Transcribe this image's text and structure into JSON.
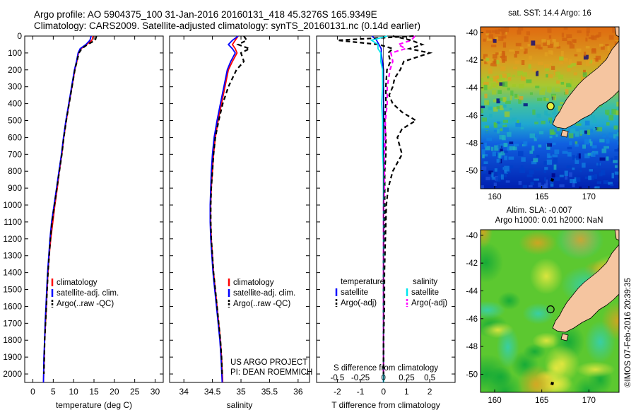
{
  "header": {
    "line1": "Argo profile: AO 5904375_100 31-Jan-2016 20160131_418 45.3276S 165.9349E",
    "line2": "Climatology: CARS2009. Satellite-adjusted climatology: synTS_20160131.nc (0.14d earlier)"
  },
  "colors": {
    "climatology": "#ff0000",
    "satellite": "#0000ff",
    "argo": "#000000",
    "sal_satellite": "#00e5ee",
    "sal_argo": "#ff00ff",
    "land": "#f5c5a0"
  },
  "credit": {
    "project": "US ARGO PROJECT",
    "pi": "PI: DEAN ROEMMICH",
    "timestamp": "©IMOS 07-Feb-2016 20:39:35"
  },
  "chart_data": [
    {
      "type": "line",
      "xlabel": "temperature (deg C)",
      "xlim": [
        -2,
        32
      ],
      "ylim": [
        0,
        2050
      ],
      "y_reversed": true,
      "xticks": [
        0,
        5,
        10,
        15,
        20,
        25,
        30
      ],
      "yticks": [
        0,
        100,
        200,
        300,
        400,
        500,
        600,
        700,
        800,
        900,
        1000,
        1100,
        1200,
        1300,
        1400,
        1500,
        1600,
        1700,
        1800,
        1900,
        2000
      ],
      "legend": [
        "climatology",
        "satellite-adj. clim.",
        "Argo(..raw -QC)"
      ],
      "series": [
        {
          "name": "climatology",
          "color": "#ff0000",
          "style": "solid",
          "x": [
            14.8,
            14.5,
            13.2,
            11.8,
            11.2,
            10.8,
            10.3,
            9.6,
            8.9,
            8.2,
            7.6,
            7.1,
            6.5,
            6.0,
            5.4,
            4.9,
            4.4,
            4.0,
            3.7,
            3.5,
            3.3,
            3.1,
            2.9,
            2.8,
            2.6
          ],
          "y": [
            0,
            25,
            50,
            75,
            100,
            150,
            200,
            300,
            400,
            500,
            600,
            700,
            800,
            900,
            1000,
            1100,
            1200,
            1300,
            1400,
            1500,
            1600,
            1700,
            1800,
            1900,
            2050
          ]
        },
        {
          "name": "satellite-adj. clim.",
          "color": "#0000ff",
          "style": "solid",
          "x": [
            14.3,
            14.0,
            13.0,
            11.6,
            11.1,
            10.7,
            10.2,
            9.5,
            8.8,
            8.1,
            7.5,
            7.0,
            6.4,
            5.8,
            5.2,
            4.6,
            4.2,
            3.9,
            3.6,
            3.4,
            3.2,
            3.0,
            2.9,
            2.7,
            2.6
          ],
          "y": [
            0,
            25,
            50,
            75,
            100,
            150,
            200,
            300,
            400,
            500,
            600,
            700,
            800,
            900,
            1000,
            1100,
            1200,
            1300,
            1400,
            1500,
            1600,
            1700,
            1800,
            1900,
            2050
          ]
        },
        {
          "name": "Argo(..raw -QC)",
          "color": "#000000",
          "style": "dashed",
          "x": [
            15.6,
            15.3,
            13.4,
            12.0,
            11.3,
            10.8,
            10.3,
            9.6,
            8.9,
            8.2,
            7.6,
            7.1,
            6.5,
            5.9,
            5.3,
            4.7,
            4.3,
            4.0,
            3.7,
            3.5,
            3.3,
            3.1,
            2.9,
            2.8,
            2.7
          ],
          "y": [
            0,
            25,
            50,
            75,
            100,
            150,
            200,
            300,
            400,
            500,
            600,
            700,
            800,
            900,
            1000,
            1100,
            1200,
            1300,
            1400,
            1500,
            1600,
            1700,
            1800,
            1900,
            2000
          ]
        }
      ]
    },
    {
      "type": "line",
      "xlabel": "salinity",
      "xlim": [
        33.75,
        36.2
      ],
      "ylim": [
        0,
        2050
      ],
      "y_reversed": true,
      "xticks": [
        34,
        34.5,
        35,
        35.5,
        36
      ],
      "legend": [
        "climatology",
        "satellite-adj. clim.",
        "Argo(..raw -QC)"
      ],
      "series": [
        {
          "name": "climatology",
          "color": "#ff0000",
          "style": "solid",
          "x": [
            34.95,
            34.9,
            34.85,
            34.9,
            34.93,
            34.85,
            34.78,
            34.72,
            34.66,
            34.6,
            34.55,
            34.52,
            34.5,
            34.48,
            34.47,
            34.47,
            34.48,
            34.5,
            34.52,
            34.55,
            34.58,
            34.61,
            34.64,
            34.66,
            34.68
          ],
          "y": [
            0,
            25,
            50,
            75,
            100,
            150,
            200,
            300,
            400,
            500,
            600,
            700,
            800,
            900,
            1000,
            1100,
            1200,
            1300,
            1400,
            1500,
            1600,
            1700,
            1800,
            1900,
            2050
          ]
        },
        {
          "name": "satellite-adj. clim.",
          "color": "#0000ff",
          "style": "solid",
          "x": [
            34.95,
            34.85,
            34.78,
            34.85,
            34.9,
            34.82,
            34.76,
            34.7,
            34.64,
            34.58,
            34.53,
            34.5,
            34.48,
            34.47,
            34.46,
            34.46,
            34.47,
            34.49,
            34.51,
            34.54,
            34.57,
            34.6,
            34.63,
            34.65,
            34.67
          ],
          "y": [
            0,
            25,
            50,
            75,
            100,
            150,
            200,
            300,
            400,
            500,
            600,
            700,
            800,
            900,
            1000,
            1100,
            1200,
            1300,
            1400,
            1500,
            1600,
            1700,
            1800,
            1900,
            2050
          ]
        },
        {
          "name": "Argo(..raw -QC)",
          "color": "#000000",
          "style": "dashed",
          "x": [
            35.05,
            35.1,
            34.95,
            35.15,
            35.0,
            35.05,
            34.92,
            34.78,
            34.68,
            34.61,
            34.55,
            34.52,
            34.5,
            34.48,
            34.47,
            34.47,
            34.48,
            34.5,
            34.52,
            34.55,
            34.58,
            34.61,
            34.64,
            34.66,
            34.67
          ],
          "y": [
            0,
            25,
            50,
            75,
            100,
            150,
            200,
            300,
            400,
            500,
            600,
            700,
            800,
            900,
            1000,
            1100,
            1200,
            1300,
            1400,
            1500,
            1600,
            1700,
            1800,
            1900,
            2000
          ]
        }
      ]
    },
    {
      "type": "line",
      "xlabel": "T difference from climatology",
      "xlabel2": "S difference from climatology",
      "xlim": [
        -2.9,
        3.1
      ],
      "ylim": [
        0,
        2050
      ],
      "y_reversed": true,
      "xticks": [
        -2,
        -1,
        0,
        1,
        2
      ],
      "xticks_s": [
        -0.5,
        -0.25,
        0,
        0.25,
        0.5
      ],
      "s_scale": 4,
      "legend_headers": [
        "temperature",
        "salinity"
      ],
      "legend": [
        "satellite",
        "Argo(-adj)",
        "satellite",
        "Argo(-adj)"
      ],
      "series": [
        {
          "name": "temperature satellite",
          "color": "#0000ff",
          "style": "solid",
          "x": [
            -0.5,
            -0.3,
            -0.2,
            -0.1,
            -0.1,
            -0.05,
            0,
            0,
            0,
            0,
            0,
            0,
            0,
            0,
            0,
            0,
            0,
            0,
            0,
            0,
            0,
            0,
            0,
            0
          ],
          "y": [
            0,
            25,
            50,
            75,
            100,
            150,
            200,
            300,
            400,
            500,
            600,
            700,
            800,
            900,
            1000,
            1100,
            1200,
            1300,
            1400,
            1500,
            1600,
            1700,
            1800,
            2050
          ]
        },
        {
          "name": "temperature Argo(-adj)",
          "color": "#000000",
          "style": "dashed",
          "x": [
            1.3,
            -2.0,
            -0.2,
            0.4,
            0.2,
            0.3,
            0.15,
            0.1,
            0.1,
            0.05,
            0.1,
            0.1,
            0.05,
            0.05,
            0.05,
            0.05,
            0.02,
            0,
            0,
            0,
            0,
            0,
            0,
            0
          ],
          "y": [
            0,
            25,
            50,
            75,
            100,
            150,
            200,
            300,
            400,
            500,
            600,
            700,
            800,
            900,
            1000,
            1100,
            1200,
            1300,
            1400,
            1500,
            1600,
            1700,
            1800,
            2000
          ]
        },
        {
          "name": "salinity satellite",
          "color": "#00e5ee",
          "style": "solid",
          "x": [
            0.04,
            -0.13,
            -0.06,
            -0.06,
            -0.03,
            -0.03,
            -0.01,
            -0.01,
            -0.02,
            -0.01,
            -0.01,
            -0.01,
            0,
            0,
            0,
            0,
            0,
            0,
            0,
            0,
            0,
            0,
            0,
            0
          ],
          "y": [
            0,
            25,
            50,
            75,
            100,
            150,
            200,
            300,
            400,
            500,
            600,
            700,
            800,
            900,
            1000,
            1100,
            1200,
            1300,
            1400,
            1500,
            1600,
            1700,
            1800,
            2050
          ]
        },
        {
          "name": "salinity Argo(-adj)",
          "color": "#ff00ff",
          "style": "dashed",
          "x": [
            0.34,
            0.3,
            0.16,
            0.24,
            0.08,
            0.1,
            0.07,
            0.04,
            0.04,
            0.02,
            0.02,
            0.01,
            0.01,
            0.01,
            0,
            0,
            0,
            0,
            0,
            0,
            0,
            0,
            0,
            0
          ],
          "y": [
            0,
            25,
            50,
            75,
            100,
            150,
            200,
            300,
            400,
            500,
            600,
            700,
            800,
            900,
            1000,
            1100,
            1200,
            1300,
            1400,
            1500,
            1600,
            1700,
            1800,
            2000
          ]
        },
        {
          "name": "salinity Argo raw",
          "color": "#000000",
          "style": "dashed",
          "x": [
            0.1,
            0.3,
            0.42,
            0.28,
            0.5,
            0.22,
            0.18,
            0.12,
            0.1,
            0.06,
            0.1,
            0.2,
            0.35,
            0.2,
            0.15,
            0.2,
            0.1,
            0.05,
            0.03,
            0.02,
            0.01,
            0.01,
            0,
            0
          ],
          "y": [
            0,
            25,
            50,
            75,
            100,
            150,
            200,
            250,
            300,
            350,
            400,
            450,
            500,
            550,
            600,
            700,
            800,
            900,
            1000,
            1200,
            1400,
            1600,
            1800,
            2000
          ]
        }
      ]
    },
    {
      "type": "heatmap",
      "title": "sat. SST: 14.4  Argo: 16",
      "xticks": [
        160,
        165,
        170
      ],
      "yticks": [
        -40,
        -42,
        -44,
        -46,
        -48,
        -50
      ],
      "xlim": [
        158.5,
        173.2
      ],
      "ylim": [
        -51.3,
        -39.6
      ],
      "argo_position": [
        165.9349,
        -45.3276
      ]
    },
    {
      "type": "heatmap",
      "title": "Altim. SLA: -0.007",
      "subtitle": "Argo h1000: 0.01 h2000: NaN",
      "xticks": [
        160,
        165,
        170
      ],
      "yticks": [
        -40,
        -42,
        -44,
        -46,
        -48,
        -50
      ],
      "xlim": [
        158.5,
        173.2
      ],
      "ylim": [
        -51.3,
        -39.6
      ],
      "argo_position": [
        165.9349,
        -45.3276
      ]
    }
  ]
}
